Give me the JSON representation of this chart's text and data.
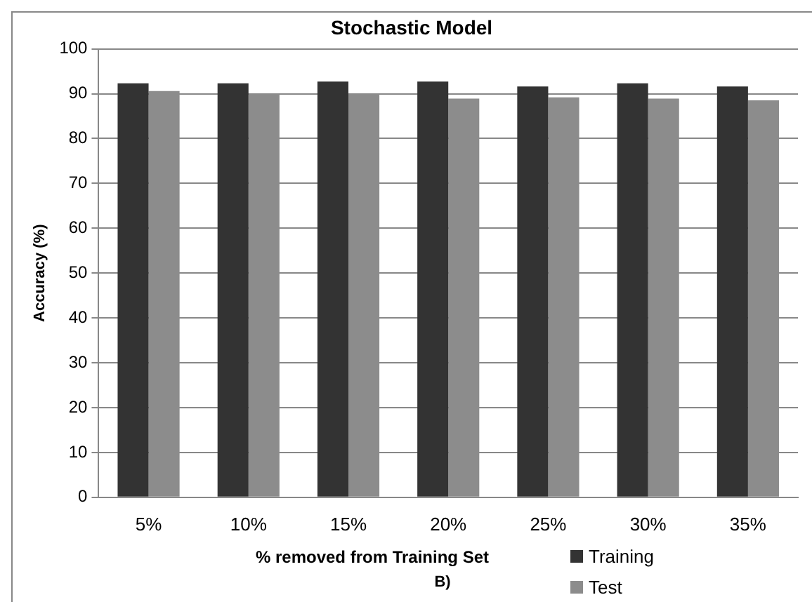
{
  "chart_data": {
    "type": "bar",
    "title": "Stochastic Model",
    "xlabel": "% removed from Training Set",
    "ylabel": "Accuracy (%)",
    "annotations": [
      "B)"
    ],
    "categories": [
      "5%",
      "10%",
      "15%",
      "20%",
      "25%",
      "30%",
      "35%"
    ],
    "series": [
      {
        "name": "Training",
        "color": "#333333",
        "values": [
          92.3,
          92.3,
          92.7,
          92.7,
          91.6,
          92.3,
          91.6
        ]
      },
      {
        "name": "Test",
        "color": "#8c8c8c",
        "values": [
          90.6,
          90.1,
          90.1,
          88.9,
          89.2,
          88.9,
          88.5
        ]
      }
    ],
    "ylim": [
      0,
      100
    ],
    "yticks": [
      0,
      10,
      20,
      30,
      40,
      50,
      60,
      70,
      80,
      90,
      100
    ],
    "grid": "y",
    "legend": "bottom right"
  }
}
